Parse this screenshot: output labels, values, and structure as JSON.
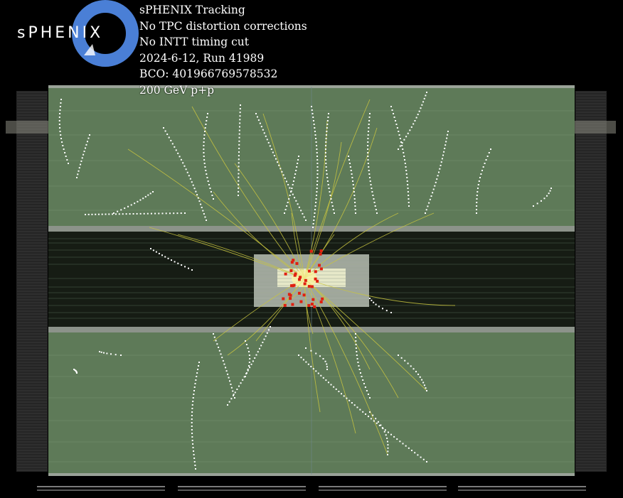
{
  "logo": {
    "text": "sPHENIX",
    "ring_color": "#4a7fd6"
  },
  "caption": {
    "lines": [
      "sPHENIX Tracking",
      "No TPC distortion corrections",
      "No INTT timing cut",
      "2024-6-12, Run 41989",
      "BCO: 401966769578532",
      "200 GeV p+p"
    ]
  },
  "colors": {
    "background": "#000000",
    "tpc_volume": "#5e7a58",
    "inner_region": "#161c14",
    "frame": "#8a8a8a",
    "tpc_clusters": "#ffffff",
    "track_fits": "#c8c440",
    "silicon_hits": "#e02010",
    "vertex_glow": "#fff6a0"
  }
}
